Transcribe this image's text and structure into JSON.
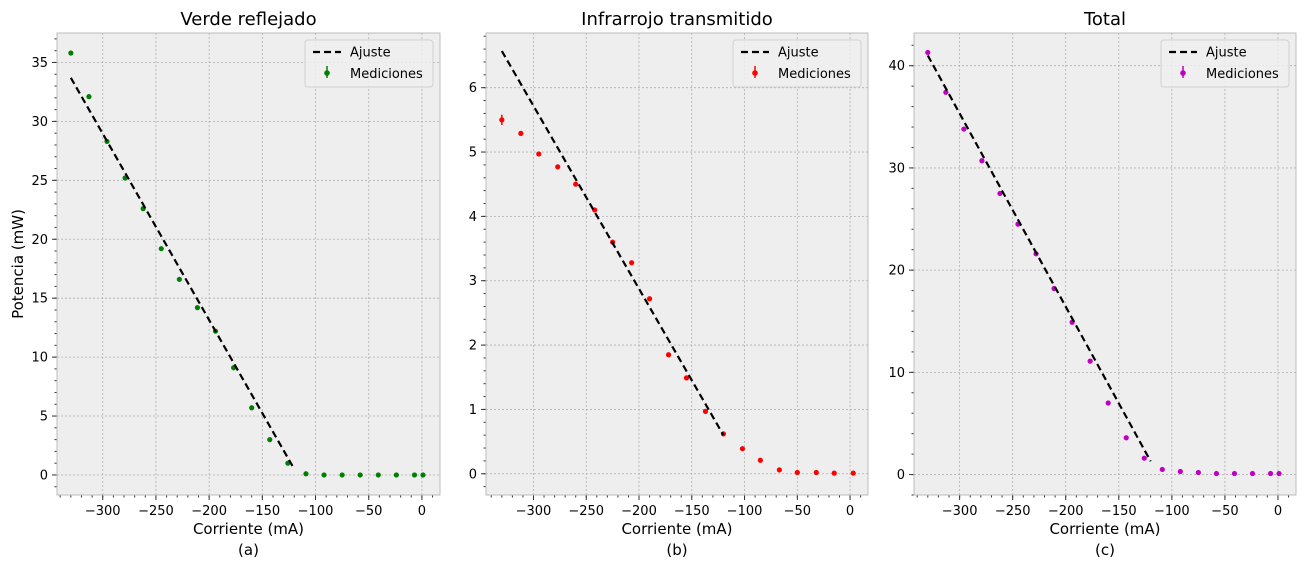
{
  "figure": {
    "ylabel": "Potencia (mW)"
  },
  "chart_data": [
    {
      "type": "scatter",
      "title": "Verde reflejado",
      "xlabel": "Corriente (mA)",
      "sublabel": "(a)",
      "ylabel": "Potencia (mW)",
      "xlim": [
        -343,
        17
      ],
      "ylim": [
        -1.7,
        37.5
      ],
      "xticks": [
        -300,
        -250,
        -200,
        -150,
        -100,
        -50,
        0
      ],
      "yticks": [
        0,
        5,
        10,
        15,
        20,
        25,
        30,
        35
      ],
      "xtick_labels": [
        "−300",
        "−250",
        "−200",
        "−150",
        "−100",
        "−50",
        "0"
      ],
      "ytick_labels": [
        "0",
        "5",
        "10",
        "15",
        "20",
        "25",
        "30",
        "35"
      ],
      "grid": true,
      "legend_position": "upper right",
      "series": [
        {
          "name": "Mediciones",
          "kind": "points_with_errorbars",
          "color": "#008000",
          "x": [
            -330,
            -313,
            -296,
            -279,
            -262,
            -245,
            -228,
            -211,
            -194,
            -177,
            -160,
            -143,
            -126,
            -109,
            -92,
            -75,
            -58,
            -41,
            -24,
            -7,
            1
          ],
          "y": [
            35.8,
            32.1,
            28.3,
            25.2,
            22.6,
            19.2,
            16.6,
            14.2,
            12.2,
            9.1,
            5.7,
            3.0,
            1.0,
            0.1,
            0.0,
            0.0,
            0.0,
            0.0,
            0.0,
            0.0,
            0.0
          ]
        },
        {
          "name": "Ajuste",
          "kind": "dashed_line",
          "color": "#000000",
          "x": [
            -330,
            -120
          ],
          "y": [
            33.7,
            0.5
          ]
        }
      ]
    },
    {
      "type": "scatter",
      "title": "Infrarrojo transmitido",
      "xlabel": "Corriente (mA)",
      "sublabel": "(b)",
      "ylabel": "",
      "xlim": [
        -345,
        17
      ],
      "ylim": [
        -0.33,
        6.85
      ],
      "xticks": [
        -300,
        -250,
        -200,
        -150,
        -100,
        -50,
        0
      ],
      "yticks": [
        0,
        1,
        2,
        3,
        4,
        5,
        6
      ],
      "xtick_labels": [
        "−300",
        "−250",
        "−200",
        "−150",
        "−100",
        "−50",
        "0"
      ],
      "ytick_labels": [
        "0",
        "1",
        "2",
        "3",
        "4",
        "5",
        "6"
      ],
      "grid": true,
      "legend_position": "upper right",
      "series": [
        {
          "name": "Mediciones",
          "kind": "points_with_errorbars",
          "color": "#ff0000",
          "x": [
            -330,
            -312,
            -295,
            -277,
            -260,
            -242,
            -225,
            -207,
            -190,
            -172,
            -155,
            -137,
            -120,
            -102,
            -85,
            -67,
            -50,
            -32,
            -15,
            3
          ],
          "y": [
            5.5,
            5.29,
            4.97,
            4.77,
            4.5,
            4.1,
            3.6,
            3.28,
            2.72,
            1.85,
            1.49,
            0.97,
            0.62,
            0.39,
            0.21,
            0.06,
            0.02,
            0.02,
            0.01,
            0.01
          ],
          "yerr": [
            0.08,
            0.03,
            0.03,
            0.03,
            0.03,
            0.03,
            0.03,
            0.03,
            0.03,
            0.02,
            0.02,
            0.02,
            0.02,
            0.01,
            0.01,
            0.01,
            0.01,
            0.01,
            0.01,
            0.01
          ]
        },
        {
          "name": "Ajuste",
          "kind": "dashed_line",
          "color": "#000000",
          "x": [
            -330,
            -120
          ],
          "y": [
            6.57,
            0.6
          ]
        }
      ]
    },
    {
      "type": "scatter",
      "title": "Total",
      "xlabel": "Corriente (mA)",
      "sublabel": "(c)",
      "ylabel": "",
      "xlim": [
        -343,
        17
      ],
      "ylim": [
        -2.0,
        43.2
      ],
      "xticks": [
        -300,
        -250,
        -200,
        -150,
        -100,
        -50,
        0
      ],
      "yticks": [
        0,
        10,
        20,
        30,
        40
      ],
      "xtick_labels": [
        "−300",
        "−250",
        "−200",
        "−150",
        "−100",
        "−50",
        "0"
      ],
      "ytick_labels": [
        "0",
        "10",
        "20",
        "30",
        "40"
      ],
      "grid": true,
      "legend_position": "upper right",
      "series": [
        {
          "name": "Mediciones",
          "kind": "points_with_errorbars",
          "color": "#c000c0",
          "x": [
            -330,
            -313,
            -296,
            -279,
            -262,
            -245,
            -228,
            -211,
            -194,
            -177,
            -160,
            -143,
            -126,
            -109,
            -92,
            -75,
            -58,
            -41,
            -24,
            -7,
            1
          ],
          "y": [
            41.3,
            37.4,
            33.8,
            30.7,
            27.5,
            24.5,
            21.6,
            18.2,
            14.9,
            11.1,
            7.0,
            3.6,
            1.6,
            0.5,
            0.3,
            0.2,
            0.1,
            0.1,
            0.1,
            0.1,
            0.1
          ]
        },
        {
          "name": "Ajuste",
          "kind": "dashed_line",
          "color": "#000000",
          "x": [
            -330,
            -120
          ],
          "y": [
            41.0,
            1.3
          ]
        }
      ]
    }
  ]
}
